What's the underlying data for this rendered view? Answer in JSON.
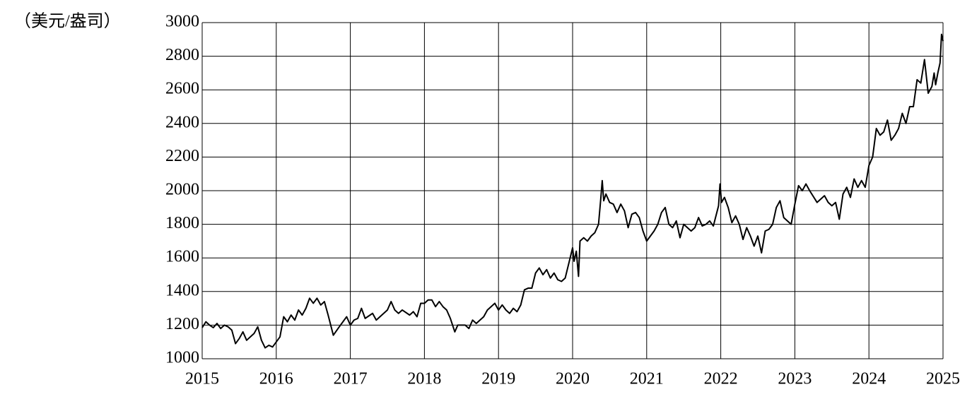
{
  "chart_data": {
    "type": "line",
    "y_axis_label": "（美元/盎司）",
    "xlim": [
      2015,
      2025
    ],
    "xticks": [
      2015,
      2016,
      2017,
      2018,
      2019,
      2020,
      2021,
      2022,
      2023,
      2024,
      2025
    ],
    "ylim": [
      1000,
      3000
    ],
    "yticks": [
      1000,
      1200,
      1400,
      1600,
      1800,
      2000,
      2200,
      2400,
      2600,
      2800,
      3000
    ],
    "grid": true,
    "color": "#000000",
    "x": [
      2015.0,
      2015.05,
      2015.1,
      2015.15,
      2015.2,
      2015.25,
      2015.3,
      2015.35,
      2015.4,
      2015.45,
      2015.5,
      2015.55,
      2015.6,
      2015.7,
      2015.75,
      2015.8,
      2015.85,
      2015.9,
      2015.95,
      2016.0,
      2016.05,
      2016.1,
      2016.15,
      2016.2,
      2016.25,
      2016.3,
      2016.35,
      2016.4,
      2016.45,
      2016.5,
      2016.55,
      2016.6,
      2016.65,
      2016.7,
      2016.77,
      2016.85,
      2016.95,
      2017.0,
      2017.05,
      2017.1,
      2017.15,
      2017.2,
      2017.3,
      2017.35,
      2017.45,
      2017.5,
      2017.55,
      2017.6,
      2017.65,
      2017.7,
      2017.8,
      2017.85,
      2017.9,
      2017.95,
      2018.0,
      2018.05,
      2018.1,
      2018.15,
      2018.2,
      2018.25,
      2018.3,
      2018.35,
      2018.41,
      2018.45,
      2018.55,
      2018.6,
      2018.65,
      2018.7,
      2018.8,
      2018.85,
      2018.95,
      2019.0,
      2019.05,
      2019.1,
      2019.15,
      2019.2,
      2019.25,
      2019.3,
      2019.35,
      2019.4,
      2019.45,
      2019.5,
      2019.55,
      2019.6,
      2019.65,
      2019.7,
      2019.75,
      2019.8,
      2019.85,
      2019.9,
      2019.95,
      2020.0,
      2020.02,
      2020.05,
      2020.08,
      2020.1,
      2020.15,
      2020.2,
      2020.25,
      2020.3,
      2020.35,
      2020.38,
      2020.4,
      2020.42,
      2020.45,
      2020.5,
      2020.55,
      2020.6,
      2020.65,
      2020.7,
      2020.75,
      2020.8,
      2020.85,
      2020.9,
      2020.95,
      2021.0,
      2021.05,
      2021.1,
      2021.15,
      2021.2,
      2021.25,
      2021.3,
      2021.35,
      2021.4,
      2021.45,
      2021.5,
      2021.55,
      2021.6,
      2021.65,
      2021.7,
      2021.75,
      2021.8,
      2021.85,
      2021.9,
      2021.97,
      2021.99,
      2022.01,
      2022.05,
      2022.1,
      2022.15,
      2022.2,
      2022.25,
      2022.3,
      2022.35,
      2022.4,
      2022.45,
      2022.5,
      2022.55,
      2022.6,
      2022.65,
      2022.7,
      2022.75,
      2022.8,
      2022.85,
      2022.95,
      2023.0,
      2023.05,
      2023.1,
      2023.15,
      2023.2,
      2023.3,
      2023.4,
      2023.45,
      2023.5,
      2023.55,
      2023.6,
      2023.65,
      2023.7,
      2023.75,
      2023.8,
      2023.85,
      2023.9,
      2023.95,
      2024.0,
      2024.05,
      2024.1,
      2024.15,
      2024.2,
      2024.25,
      2024.3,
      2024.35,
      2024.4,
      2024.45,
      2024.5,
      2024.55,
      2024.6,
      2024.65,
      2024.7,
      2024.75,
      2024.8,
      2024.85,
      2024.88,
      2024.9,
      2024.93,
      2024.96,
      2024.98,
      2025.0
    ],
    "values": [
      1185,
      1220,
      1200,
      1185,
      1210,
      1180,
      1200,
      1190,
      1170,
      1090,
      1120,
      1160,
      1110,
      1150,
      1190,
      1110,
      1065,
      1080,
      1070,
      1100,
      1130,
      1250,
      1220,
      1260,
      1230,
      1290,
      1260,
      1300,
      1360,
      1330,
      1360,
      1320,
      1340,
      1260,
      1140,
      1190,
      1250,
      1200,
      1230,
      1240,
      1300,
      1240,
      1270,
      1230,
      1270,
      1290,
      1340,
      1290,
      1270,
      1290,
      1260,
      1280,
      1250,
      1330,
      1330,
      1350,
      1350,
      1310,
      1340,
      1310,
      1290,
      1240,
      1160,
      1200,
      1200,
      1180,
      1230,
      1210,
      1250,
      1290,
      1330,
      1290,
      1320,
      1290,
      1270,
      1300,
      1280,
      1320,
      1410,
      1420,
      1420,
      1510,
      1540,
      1500,
      1530,
      1480,
      1510,
      1470,
      1460,
      1480,
      1570,
      1660,
      1580,
      1640,
      1490,
      1700,
      1720,
      1700,
      1730,
      1750,
      1800,
      1950,
      2060,
      1940,
      1980,
      1930,
      1920,
      1870,
      1920,
      1880,
      1780,
      1860,
      1870,
      1840,
      1760,
      1700,
      1730,
      1760,
      1800,
      1870,
      1900,
      1800,
      1780,
      1820,
      1720,
      1800,
      1780,
      1760,
      1780,
      1840,
      1790,
      1800,
      1820,
      1790,
      1910,
      2040,
      1930,
      1960,
      1900,
      1810,
      1850,
      1800,
      1710,
      1780,
      1730,
      1670,
      1730,
      1630,
      1760,
      1770,
      1800,
      1900,
      1940,
      1840,
      1800,
      1920,
      2030,
      2000,
      2040,
      2000,
      1930,
      1970,
      1930,
      1910,
      1930,
      1830,
      1980,
      2020,
      1960,
      2070,
      2020,
      2060,
      2020,
      2150,
      2200,
      2370,
      2330,
      2350,
      2420,
      2300,
      2330,
      2370,
      2460,
      2400,
      2500,
      2500,
      2660,
      2640,
      2780,
      2580,
      2620,
      2700,
      2630,
      2700,
      2760,
      2930,
      2890
    ]
  }
}
